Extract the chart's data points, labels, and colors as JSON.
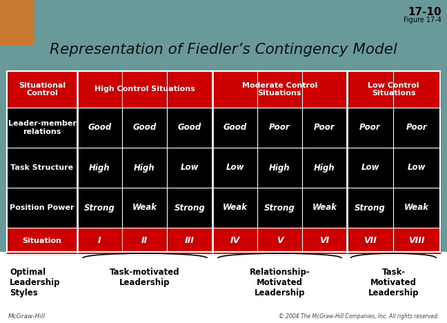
{
  "title": "Representation of Fiedler’s Contingency Model",
  "page_ref": "17-10",
  "figure_ref": "Figure 17-4",
  "bg_color": "#6a9999",
  "orange_color": "#c87830",
  "red_color": "#cc0000",
  "black_color": "#000000",
  "white_color": "#ffffff",
  "header_labels": [
    "Situational\nControl",
    "High Control Situations",
    "Moderate Control\nSituations",
    "Low Control\nSituations"
  ],
  "row_labels": [
    "Leader-member\nrelations",
    "Task Structure",
    "Position Power",
    "Situation"
  ],
  "col_labels": [
    "I",
    "II",
    "III",
    "IV",
    "V",
    "VI",
    "VII",
    "VIII"
  ],
  "data_lmr": [
    "Good",
    "Good",
    "Good",
    "Good",
    "Poor",
    "Poor",
    "Poor",
    "Poor"
  ],
  "data_ts": [
    "High",
    "High",
    "Low",
    "Low",
    "High",
    "High",
    "Low",
    "Low"
  ],
  "data_pp": [
    "Strong",
    "Weak",
    "Strong",
    "Weak",
    "Strong",
    "Weak",
    "Strong",
    "Weak"
  ],
  "footer_left": "McGraw-Hill",
  "footer_right": "© 2004 The McGraw-Hill Companies, Inc. All rights reserved."
}
